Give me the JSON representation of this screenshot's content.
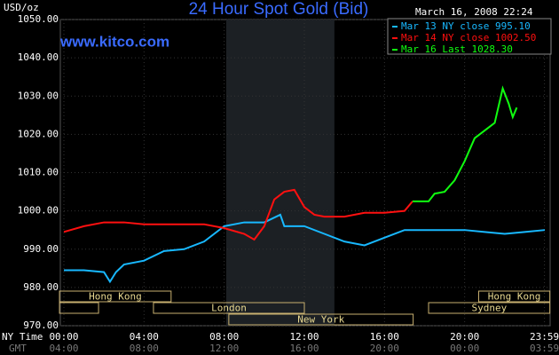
{
  "chart_data": {
    "type": "line",
    "title": "24 Hour Spot Gold (Bid)",
    "date": "March 16, 2008 22:24",
    "website": "www.kitco.com",
    "y_label": "USD/oz",
    "x_label": "NY Time",
    "x2_label": "GMT",
    "xlim": [
      0,
      24
    ],
    "ylim": [
      970,
      1050
    ],
    "yticks": [
      {
        "value": 970,
        "label": "970.00"
      },
      {
        "value": 980,
        "label": "980.00"
      },
      {
        "value": 990,
        "label": "990.00"
      },
      {
        "value": 1000,
        "label": "1000.00"
      },
      {
        "value": 1010,
        "label": "1010.00"
      },
      {
        "value": 1020,
        "label": "1020.00"
      },
      {
        "value": 1030,
        "label": "1030.00"
      },
      {
        "value": 1040,
        "label": "1040.00"
      },
      {
        "value": 1050,
        "label": "1050.00"
      }
    ],
    "xticks": [
      {
        "value": 0,
        "label": "00:00"
      },
      {
        "value": 4,
        "label": "04:00"
      },
      {
        "value": 8,
        "label": "08:00"
      },
      {
        "value": 12,
        "label": "12:00"
      },
      {
        "value": 16,
        "label": "16:00"
      },
      {
        "value": 20,
        "label": "20:00"
      },
      {
        "value": 23.983,
        "label": "23:59"
      }
    ],
    "x2tick_labels": [
      "04:00",
      "08:00",
      "12:00",
      "16:00",
      "20:00",
      "00:00",
      "03:59"
    ],
    "shaded_range": [
      8.1,
      13.5
    ],
    "sessions": [
      [
        {
          "name": "Hong Kong",
          "start": -0.22,
          "end": 5.35
        },
        {
          "name": "Hong Kong",
          "start": 20.7,
          "end": 24.25
        }
      ],
      [
        {
          "name": null,
          "start": -0.22,
          "end": 1.73
        },
        {
          "name": "London",
          "start": 4.47,
          "end": 12.0
        },
        {
          "name": "Sydney",
          "start": 18.2,
          "end": 24.25
        }
      ],
      [
        {
          "name": "New York",
          "start": 8.23,
          "end": 17.43
        }
      ]
    ],
    "series": [
      {
        "name": "Mar 13 NY close 995.10",
        "color": "#18b8ff",
        "x": [
          0,
          1,
          2,
          2.3,
          2.6,
          3,
          4,
          5,
          6,
          7,
          8,
          9,
          10,
          10.8,
          11,
          12,
          13,
          14,
          15,
          16,
          17,
          18,
          19,
          20,
          21,
          22,
          23,
          24
        ],
        "values": [
          984.5,
          984.5,
          984,
          981.5,
          984,
          986,
          987,
          989.5,
          990,
          992,
          996,
          997,
          997,
          999,
          996,
          996,
          994,
          992,
          991,
          993,
          995,
          995,
          995,
          995,
          994.5,
          994,
          994.5,
          995
        ]
      },
      {
        "name": "Mar 14 NY close 1002.50",
        "color": "#ff1010",
        "x": [
          0,
          1,
          2,
          3,
          4,
          5,
          6,
          7,
          8,
          9,
          9.5,
          10,
          10.5,
          11,
          11.5,
          12,
          12.5,
          13,
          14,
          15,
          16,
          17,
          17.4
        ],
        "values": [
          994.5,
          996,
          997,
          997,
          996.5,
          996.5,
          996.5,
          996.5,
          995.5,
          994,
          992.5,
          996,
          1003,
          1005,
          1005.5,
          1001,
          999,
          998.5,
          998.5,
          999.5,
          999.5,
          1000,
          1002.5
        ]
      },
      {
        "name": "Mar 16 Last 1028.30",
        "color": "#10ff10",
        "x": [
          17.4,
          18.2,
          18.5,
          19,
          19.5,
          20,
          20.5,
          21,
          21.5,
          21.9,
          22.2,
          22.4,
          22.6
        ],
        "values": [
          1002.5,
          1002.5,
          1004.5,
          1005,
          1008,
          1013,
          1019,
          1021,
          1023,
          1032,
          1028,
          1024.5,
          1027
        ]
      }
    ]
  }
}
